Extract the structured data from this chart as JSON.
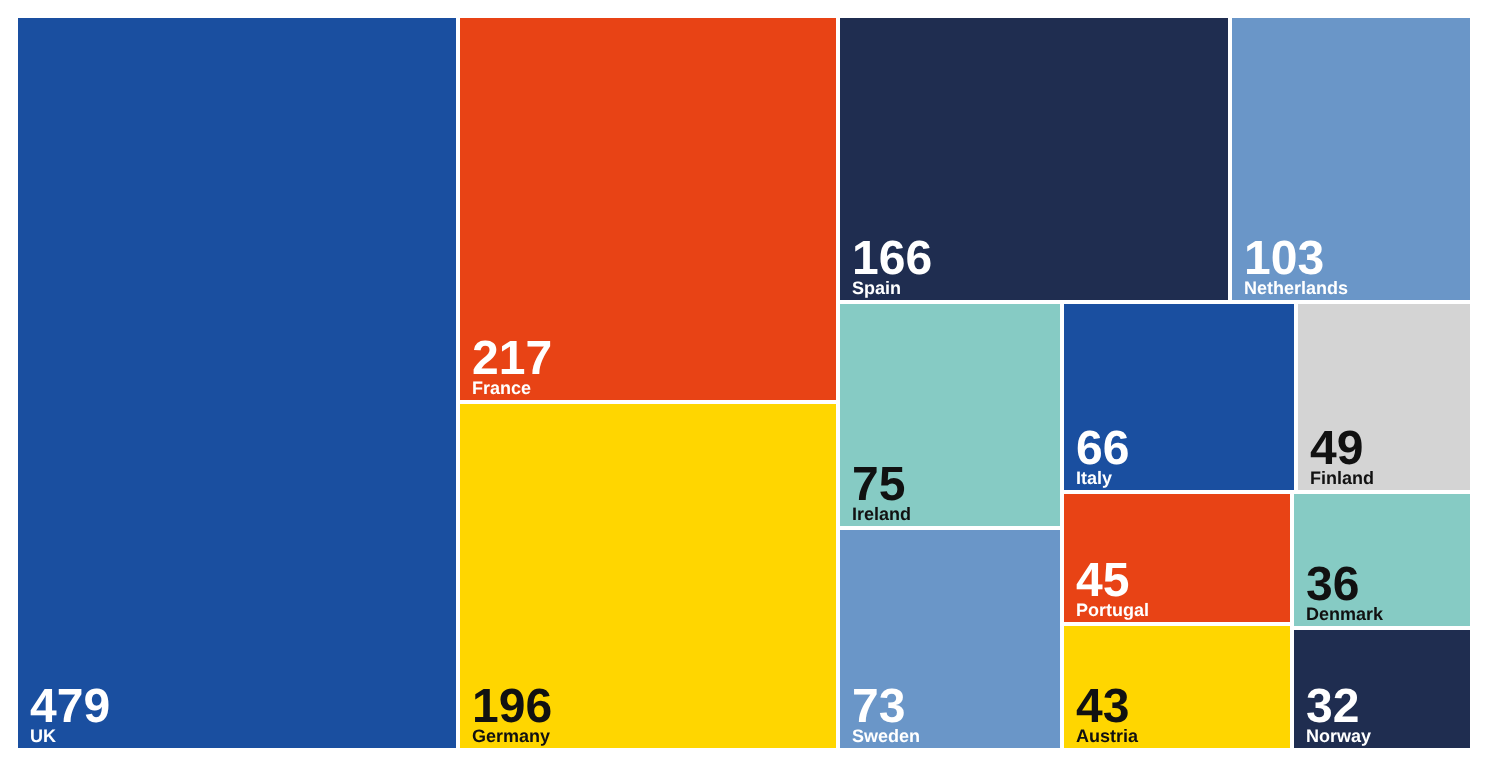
{
  "chart_data": {
    "type": "other",
    "categories": [
      "UK",
      "France",
      "Germany",
      "Spain",
      "Netherlands",
      "Ireland",
      "Sweden",
      "Italy",
      "Finland",
      "Portugal",
      "Austria",
      "Denmark",
      "Norway"
    ],
    "values": [
      479,
      217,
      196,
      166,
      103,
      75,
      73,
      66,
      49,
      45,
      43,
      36,
      32
    ],
    "colors": [
      "#1a4fa0",
      "#e84315",
      "#ffd600",
      "#1f2d50",
      "#6a96c8",
      "#86cbc4",
      "#6a96c8",
      "#1a4fa0",
      "#d4d4d4",
      "#e84315",
      "#ffd600",
      "#86cbc4",
      "#1f2d50"
    ],
    "data_labels": true
  }
}
